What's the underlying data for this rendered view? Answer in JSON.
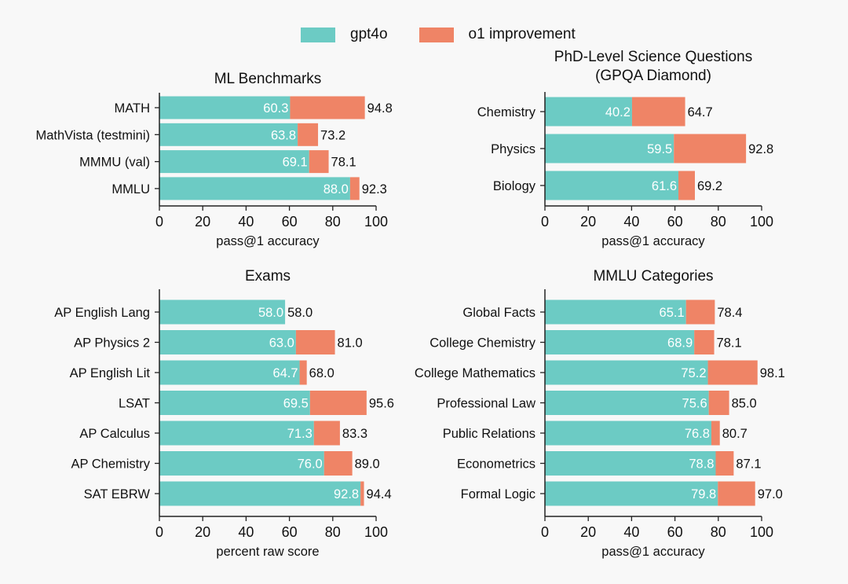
{
  "legend": {
    "items": [
      {
        "label": "gpt4o",
        "color": "#6ccbc4"
      },
      {
        "label": "o1 improvement",
        "color": "#ef8466"
      }
    ]
  },
  "chart_data": [
    {
      "type": "bar",
      "stacked": true,
      "orientation": "horizontal",
      "title": "ML Benchmarks",
      "xlabel": "pass@1 accuracy",
      "ylabel": "",
      "xlim": [
        0,
        100
      ],
      "xticks": [
        "0",
        "20",
        "40",
        "60",
        "80",
        "100"
      ],
      "categories": [
        "MATH",
        "MathVista (testmini)",
        "MMMU (val)",
        "MMLU"
      ],
      "series": [
        {
          "name": "gpt4o",
          "values": [
            60.3,
            63.8,
            69.1,
            88.0
          ]
        },
        {
          "name": "o1",
          "values": [
            94.8,
            73.2,
            78.1,
            92.3
          ]
        }
      ],
      "inner_labels": [
        "60.3",
        "63.8",
        "69.1",
        "88.0"
      ],
      "outer_labels": [
        "94.8",
        "73.2",
        "78.1",
        "92.3"
      ]
    },
    {
      "type": "bar",
      "stacked": true,
      "orientation": "horizontal",
      "title": "PhD-Level Science Questions",
      "title_line2": "(GPQA Diamond)",
      "xlabel": "pass@1 accuracy",
      "ylabel": "",
      "xlim": [
        0,
        100
      ],
      "xticks": [
        "0",
        "20",
        "40",
        "60",
        "80",
        "100"
      ],
      "categories": [
        "Chemistry",
        "Physics",
        "Biology"
      ],
      "series": [
        {
          "name": "gpt4o",
          "values": [
            40.2,
            59.5,
            61.6
          ]
        },
        {
          "name": "o1",
          "values": [
            64.7,
            92.8,
            69.2
          ]
        }
      ],
      "inner_labels": [
        "40.2",
        "59.5",
        "61.6"
      ],
      "outer_labels": [
        "64.7",
        "92.8",
        "69.2"
      ]
    },
    {
      "type": "bar",
      "stacked": true,
      "orientation": "horizontal",
      "title": "Exams",
      "xlabel": "percent raw score",
      "ylabel": "",
      "xlim": [
        0,
        100
      ],
      "xticks": [
        "0",
        "20",
        "40",
        "60",
        "80",
        "100"
      ],
      "categories": [
        "AP English Lang",
        "AP Physics 2",
        "AP English Lit",
        "LSAT",
        "AP Calculus",
        "AP Chemistry",
        "SAT EBRW"
      ],
      "series": [
        {
          "name": "gpt4o",
          "values": [
            58.0,
            63.0,
            64.7,
            69.5,
            71.3,
            76.0,
            92.8
          ]
        },
        {
          "name": "o1",
          "values": [
            58.0,
            81.0,
            68.0,
            95.6,
            83.3,
            89.0,
            94.4
          ]
        }
      ],
      "inner_labels": [
        "58.0",
        "63.0",
        "64.7",
        "69.5",
        "71.3",
        "76.0",
        "92.8"
      ],
      "outer_labels": [
        "58.0",
        "81.0",
        "68.0",
        "95.6",
        "83.3",
        "89.0",
        "94.4"
      ]
    },
    {
      "type": "bar",
      "stacked": true,
      "orientation": "horizontal",
      "title": "MMLU Categories",
      "xlabel": "pass@1 accuracy",
      "ylabel": "",
      "xlim": [
        0,
        100
      ],
      "xticks": [
        "0",
        "20",
        "40",
        "60",
        "80",
        "100"
      ],
      "categories": [
        "Global Facts",
        "College Chemistry",
        "College Mathematics",
        "Professional Law",
        "Public Relations",
        "Econometrics",
        "Formal Logic"
      ],
      "series": [
        {
          "name": "gpt4o",
          "values": [
            65.1,
            68.9,
            75.2,
            75.6,
            76.8,
            78.8,
            79.8
          ]
        },
        {
          "name": "o1",
          "values": [
            78.4,
            78.1,
            98.1,
            85.0,
            80.7,
            87.1,
            97.0
          ]
        }
      ],
      "inner_labels": [
        "65.1",
        "68.9",
        "75.2",
        "75.6",
        "76.8",
        "78.8",
        "79.8"
      ],
      "outer_labels": [
        "78.4",
        "78.1",
        "98.1",
        "85.0",
        "80.7",
        "87.1",
        "97.0"
      ]
    }
  ]
}
